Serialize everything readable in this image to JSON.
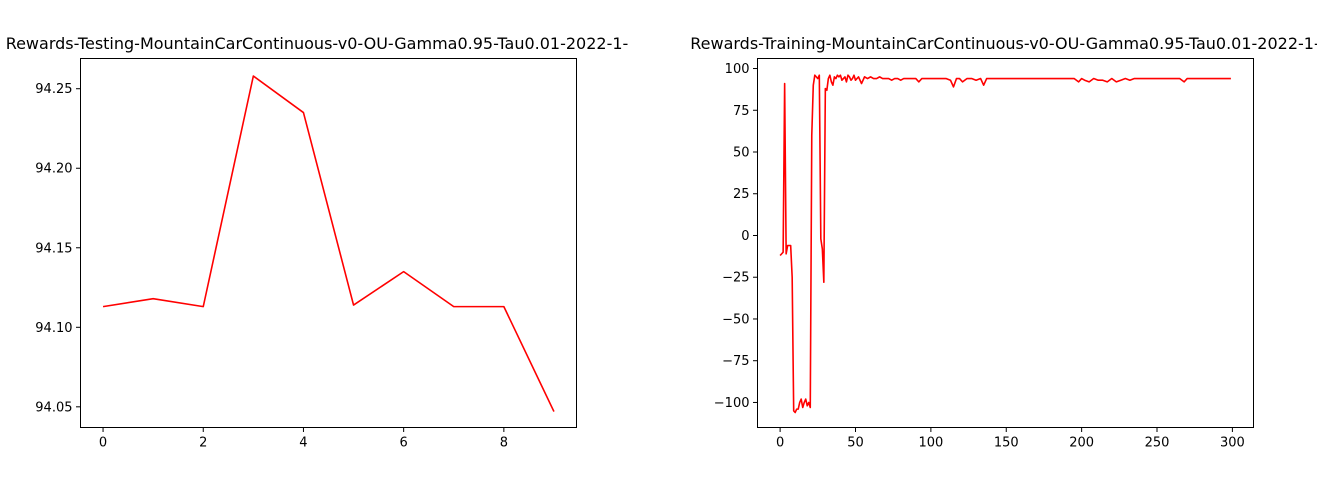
{
  "chart_data": [
    {
      "type": "line",
      "title": "Rewards-Testing-MountainCarContinuous-v0-OU-Gamma0.95-Tau0.01-2022-1-",
      "xlabel": "",
      "ylabel": "",
      "xlim": [
        -0.45,
        9.45
      ],
      "ylim": [
        94.037,
        94.269
      ],
      "xticks": [
        0,
        2,
        4,
        6,
        8
      ],
      "yticks": [
        94.05,
        94.1,
        94.15,
        94.2,
        94.25
      ],
      "xtick_labels": [
        "0",
        "2",
        "4",
        "6",
        "8"
      ],
      "ytick_labels": [
        "94.05",
        "94.10",
        "94.15",
        "94.20",
        "94.25"
      ],
      "grid": false,
      "color": "#ff0000",
      "series": [
        {
          "x": [
            0,
            1,
            2,
            3,
            4,
            5,
            6,
            7,
            8,
            9
          ],
          "values": [
            94.113,
            94.118,
            94.113,
            94.258,
            94.235,
            94.114,
            94.135,
            94.113,
            94.113,
            94.047
          ]
        }
      ]
    },
    {
      "type": "line",
      "title": "Rewards-Training-MountainCarContinuous-v0-OU-Gamma0.95-Tau0.01-2022-1-",
      "xlabel": "",
      "ylabel": "",
      "xlim": [
        -15,
        314
      ],
      "ylim": [
        -115,
        106
      ],
      "xticks": [
        0,
        50,
        100,
        150,
        200,
        250,
        300
      ],
      "yticks": [
        -100,
        -75,
        -50,
        -25,
        0,
        25,
        50,
        75,
        100
      ],
      "xtick_labels": [
        "0",
        "50",
        "100",
        "150",
        "200",
        "250",
        "300"
      ],
      "ytick_labels": [
        "−100",
        "−75",
        "−50",
        "−25",
        "0",
        "25",
        "50",
        "75",
        "100"
      ],
      "grid": false,
      "color": "#ff0000",
      "series": [
        {
          "x": [
            0,
            1,
            2,
            3,
            4,
            5,
            6,
            7,
            8,
            9,
            10,
            11,
            12,
            13,
            14,
            15,
            16,
            17,
            18,
            19,
            20,
            21,
            22,
            23,
            24,
            25,
            26,
            27,
            28,
            29,
            30,
            31,
            32,
            33,
            34,
            35,
            36,
            37,
            38,
            39,
            40,
            41,
            42,
            43,
            44,
            45,
            46,
            47,
            48,
            49,
            50,
            52,
            54,
            56,
            58,
            60,
            62,
            64,
            66,
            68,
            70,
            72,
            74,
            76,
            78,
            80,
            82,
            84,
            86,
            88,
            90,
            92,
            94,
            96,
            98,
            100,
            105,
            110,
            113,
            115,
            117,
            119,
            121,
            124,
            127,
            130,
            133,
            135,
            137,
            140,
            145,
            150,
            155,
            160,
            165,
            170,
            175,
            180,
            185,
            190,
            195,
            198,
            200,
            202,
            205,
            208,
            211,
            214,
            217,
            220,
            223,
            226,
            229,
            232,
            235,
            240,
            245,
            250,
            255,
            260,
            265,
            268,
            270,
            275,
            280,
            285,
            290,
            295,
            299
          ],
          "values": [
            -12,
            -11,
            -10,
            91,
            -11,
            -6,
            -6,
            -6,
            -25,
            -105,
            -106,
            -104,
            -104,
            -100,
            -98,
            -103,
            -100,
            -98,
            -102,
            -100,
            -103,
            60,
            90,
            96,
            95,
            94,
            96,
            -2,
            -8,
            -28,
            88,
            87,
            94,
            96,
            92,
            90,
            95,
            94,
            96,
            95,
            96,
            93,
            94,
            95,
            92,
            96,
            95,
            93,
            94,
            96,
            93,
            95,
            91,
            95,
            94,
            95,
            94,
            94,
            95,
            94,
            94,
            94,
            93,
            94,
            94,
            93,
            94,
            94,
            94,
            94,
            94,
            92,
            94,
            94,
            94,
            94,
            94,
            94,
            93,
            89,
            94,
            94,
            92,
            94,
            94,
            93,
            94,
            90,
            94,
            94,
            94,
            94,
            94,
            94,
            94,
            94,
            94,
            94,
            94,
            94,
            94,
            92,
            94,
            93,
            92,
            94,
            93,
            93,
            92,
            94,
            92,
            93,
            94,
            93,
            94,
            94,
            94,
            94,
            94,
            94,
            94,
            92,
            94,
            94,
            94,
            94,
            94,
            94,
            94
          ]
        }
      ]
    }
  ]
}
